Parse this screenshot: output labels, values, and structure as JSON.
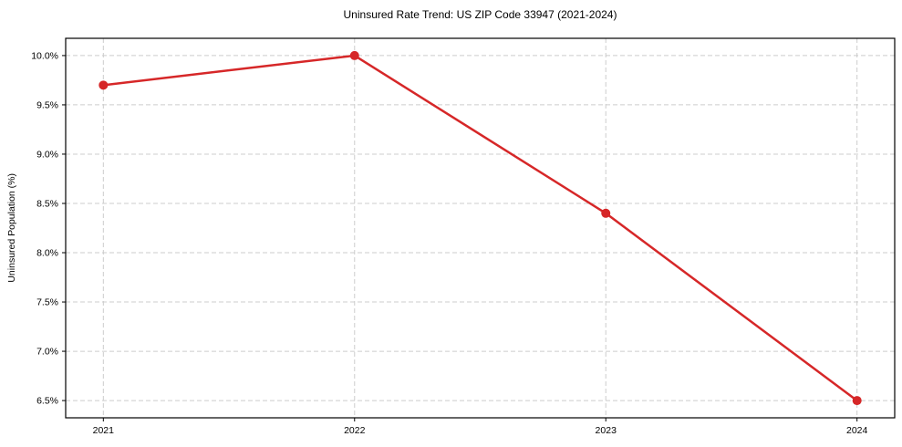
{
  "chart_data": {
    "type": "line",
    "title": "Uninsured Rate Trend: US ZIP Code 33947 (2021-2024)",
    "xlabel": "",
    "ylabel": "Uninsured Population (%)",
    "x": [
      2021,
      2022,
      2023,
      2024
    ],
    "values": [
      9.7,
      10.0,
      8.4,
      6.5
    ],
    "series_name": "Uninsured rate",
    "xtick_values": [
      2021,
      2022,
      2023,
      2024
    ],
    "xtick_labels": [
      "2021",
      "2022",
      "2023",
      "2024"
    ],
    "ytick_values": [
      6.5,
      7.0,
      7.5,
      8.0,
      8.5,
      9.0,
      9.5,
      10.0
    ],
    "ytick_labels": [
      "6.5%",
      "7.0%",
      "7.5%",
      "8.0%",
      "8.5%",
      "9.0%",
      "9.5%",
      "10.0%"
    ],
    "xlim": [
      2020.85,
      2024.15
    ],
    "ylim": [
      6.325,
      10.175
    ],
    "grid": true,
    "grid_style": "dashed",
    "legend": "none",
    "colors": {
      "line": "#d62728",
      "marker": "#d62728",
      "grid": "#cccccc",
      "frame": "#000000",
      "background": "#ffffff"
    }
  }
}
